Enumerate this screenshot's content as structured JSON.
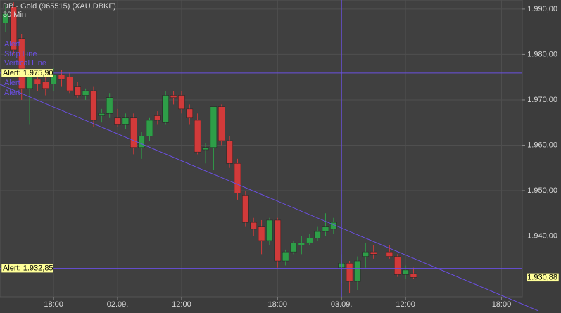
{
  "chart_data": {
    "type": "candlestick",
    "title": "DB - Gold (965515) (XAU.DBKF)",
    "subtitle": "30 Min",
    "x": [
      0,
      1,
      2,
      3,
      4,
      5,
      6,
      7,
      8,
      9,
      10,
      11,
      12,
      13,
      14,
      15,
      16,
      17,
      18,
      19,
      20,
      21,
      22,
      23,
      24,
      25,
      26,
      27,
      28,
      29,
      30,
      31,
      32,
      33,
      34,
      35,
      36,
      37,
      38,
      39,
      40,
      41,
      42,
      43,
      44,
      45,
      46,
      48,
      49,
      50,
      51
    ],
    "open": [
      1987,
      1990.5,
      1983.5,
      1972.5,
      1974.5,
      1974,
      1973.5,
      1975.5,
      1975,
      1973,
      1971,
      1972,
      1966.5,
      1967,
      1966,
      1964.5,
      1966,
      1959.5,
      1962,
      1966.5,
      1965,
      1971,
      1971,
      1968,
      1965.5,
      1959,
      1959.5,
      1968.5,
      1961,
      1956,
      1949,
      1943,
      1942,
      1939,
      1943.5,
      1934.5,
      1936.5,
      1938,
      1938.5,
      1939.5,
      1941,
      1941.5,
      1933,
      1934,
      1930,
      1935.5,
      1936.5,
      1936.5,
      1935.5,
      1931.5,
      1931.7
    ],
    "high": [
      1991,
      1991.5,
      1984.5,
      1976.5,
      1976,
      1975.5,
      1977,
      1976.5,
      1976,
      1974,
      1972.5,
      1973,
      1968,
      1971.5,
      1968,
      1967,
      1967,
      1963,
      1966,
      1967.5,
      1972,
      1972,
      1972,
      1969,
      1967,
      1960.5,
      1968.5,
      1969,
      1962,
      1957,
      1950,
      1944,
      1943.5,
      1944,
      1944,
      1937,
      1939,
      1940,
      1940.5,
      1942,
      1945,
      1944,
      1936,
      1934.5,
      1935.5,
      1938.5,
      1938,
      1938,
      1936,
      1933.5,
      1933
    ],
    "low": [
      1985,
      1980,
      1970,
      1964.5,
      1972,
      1971,
      1972,
      1973,
      1971.5,
      1970.5,
      1970,
      1964,
      1965,
      1966,
      1964,
      1963.5,
      1958,
      1957,
      1961,
      1964.5,
      1964.5,
      1969,
      1967,
      1964.5,
      1958,
      1956,
      1954.5,
      1960,
      1955,
      1948,
      1942,
      1940,
      1936,
      1938,
      1933,
      1933.5,
      1936,
      1936,
      1938,
      1939,
      1940,
      1940.5,
      1929.5,
      1927.5,
      1928,
      1933,
      1935,
      1935,
      1931,
      1930.5,
      1930.5
    ],
    "close": [
      1989,
      1981,
      1972.5,
      1975,
      1973.5,
      1972.5,
      1975.5,
      1974.5,
      1972,
      1971,
      1972,
      1965.5,
      1967,
      1970.5,
      1964.5,
      1966,
      1959.5,
      1962,
      1965.5,
      1965.5,
      1971,
      1970.5,
      1968,
      1966,
      1958.5,
      1959.5,
      1968.5,
      1961,
      1956,
      1949.5,
      1943,
      1941.5,
      1939,
      1943.5,
      1934.5,
      1936.5,
      1938.5,
      1938.5,
      1939.5,
      1941,
      1942,
      1943,
      1934,
      1930,
      1934.5,
      1936.5,
      1936,
      1935.5,
      1931.5,
      1932.5,
      1930.88
    ],
    "up_color": "#2e9e48",
    "down_color": "#d23a3a",
    "xlim": [
      -0.7,
      64.6
    ],
    "xticks": [
      {
        "value": 6,
        "label": "18:00"
      },
      {
        "value": 14,
        "label": "02.09."
      },
      {
        "value": 22,
        "label": "12:00"
      },
      {
        "value": 34,
        "label": "18:00"
      },
      {
        "value": 42,
        "label": "03.09."
      },
      {
        "value": 50,
        "label": "12:00"
      },
      {
        "value": 62,
        "label": "18:00"
      }
    ],
    "ylim": [
      1926.6,
      1992.0
    ],
    "yticks": [
      {
        "value": 1990,
        "label": "1.990,00"
      },
      {
        "value": 1980,
        "label": "1.980,00"
      },
      {
        "value": 1970,
        "label": "1.970,00"
      },
      {
        "value": 1960,
        "label": "1.960,00"
      },
      {
        "value": 1950,
        "label": "1.950,00"
      },
      {
        "value": 1940,
        "label": "1.940,00"
      }
    ],
    "grid": true,
    "alerts": [
      {
        "value": 1975.9,
        "label": "Alert: 1.975,90"
      },
      {
        "value": 1932.85,
        "label": "Alert: 1.932,85"
      }
    ],
    "last_price": {
      "value": 1930.88,
      "label": "1.930,88"
    },
    "vertical_line_x": 42,
    "line_color": "#6a4fe0",
    "drawing_labels": [
      "Alert",
      "Stop Line",
      "Vertical Line",
      "Alert",
      "Alert"
    ]
  }
}
